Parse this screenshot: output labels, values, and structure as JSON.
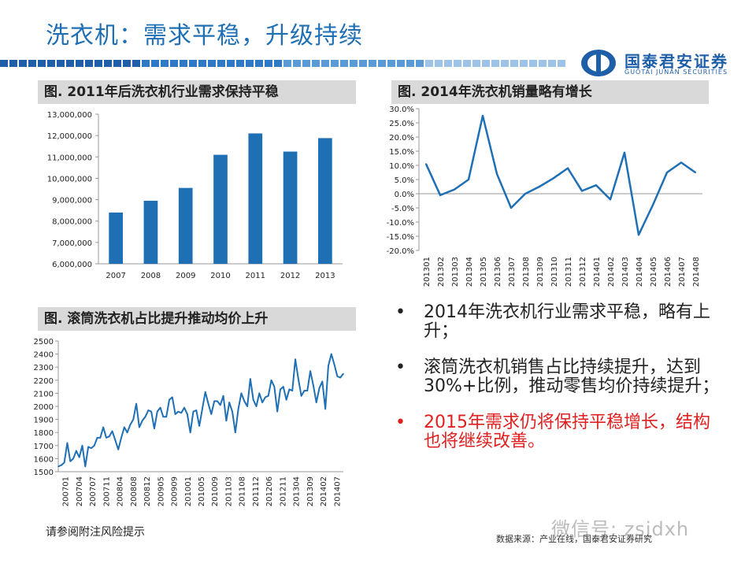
{
  "header": {
    "title": "洗衣机：需求平稳，升级持续",
    "logo_cn": "国泰君安证券",
    "logo_en": "GUOTAI  JUNAN  SECURITIES",
    "brand_color": "#1f6fb5"
  },
  "panels": {
    "bar_title": "图. 2011年后洗衣机行业需求保持平稳",
    "line1_title": "图. 2014年洗衣机销量略有增长",
    "line2_title": "图. 滚筒洗衣机占比提升推动均价上升"
  },
  "bullets": [
    {
      "text": "2014年洗衣机行业需求平稳，略有上升；",
      "color": "#222222"
    },
    {
      "text": "滚筒洗衣机销售占比持续提升，达到30%+比例，推动零售均价持续提升；",
      "color": "#222222"
    },
    {
      "text": "2015年需求仍将保持平稳增长，结构也将继续改善。",
      "color": "#e02020"
    }
  ],
  "footer": {
    "risk_note": "请参阅附注风险提示",
    "source": "数据来源：产业在线，国泰君安证券研究",
    "watermark": "微信号: zsjdxh"
  },
  "chart_data": [
    {
      "type": "bar",
      "title": "图. 2011年后洗衣机行业需求保持平稳",
      "categories": [
        "2007",
        "2008",
        "2009",
        "2010",
        "2011",
        "2012",
        "2013"
      ],
      "values": [
        8400000,
        8950000,
        9550000,
        11100000,
        12100000,
        11250000,
        11880000
      ],
      "ylim": [
        6000000,
        13000000
      ],
      "yticks": [
        6000000,
        7000000,
        8000000,
        9000000,
        10000000,
        11000000,
        12000000,
        13000000
      ],
      "ytick_labels": [
        "6,000,000",
        "7,000,000",
        "8,000,000",
        "9,000,000",
        "10,000,000",
        "11,000,000",
        "12,000,000",
        "13,000,000"
      ],
      "color": "#1f6fb5"
    },
    {
      "type": "line",
      "title": "图. 2014年洗衣机销量略有增长",
      "categories": [
        "201301",
        "201302",
        "201303",
        "201304",
        "201305",
        "201306",
        "201307",
        "201308",
        "201309",
        "201310",
        "201311",
        "201312",
        "201401",
        "201402",
        "201403",
        "201404",
        "201405",
        "201406",
        "201407",
        "201408"
      ],
      "values": [
        10.5,
        -0.5,
        1.5,
        5.0,
        27.5,
        7.0,
        -5.0,
        0.0,
        2.5,
        5.5,
        9.0,
        1.0,
        3.0,
        -2.0,
        14.5,
        -14.5,
        -4.0,
        7.5,
        11.0,
        7.5
      ],
      "ylim": [
        -20,
        30
      ],
      "yticks": [
        -20,
        -15,
        -10,
        -5,
        0,
        5,
        10,
        15,
        20,
        25,
        30
      ],
      "ytick_labels": [
        "-20.0%",
        "-15.0%",
        "-10.0%",
        "-5.0%",
        "0.0%",
        "5.0%",
        "10.0%",
        "15.0%",
        "20.0%",
        "25.0%",
        "30.0%"
      ],
      "color": "#1f6fb5"
    },
    {
      "type": "line",
      "title": "图. 滚筒洗衣机占比提升推动均价上升",
      "xtick_labels": [
        "200701",
        "200704",
        "200707",
        "200711",
        "200804",
        "200808",
        "200812",
        "200905",
        "200909",
        "201001",
        "201005",
        "201009",
        "201103",
        "201108",
        "201112",
        "201206",
        "201211",
        "201304",
        "201309",
        "201402",
        "201407"
      ],
      "values": [
        1540,
        1550,
        1570,
        1720,
        1580,
        1600,
        1660,
        1610,
        1700,
        1540,
        1690,
        1680,
        1700,
        1760,
        1760,
        1840,
        1760,
        1770,
        1810,
        1740,
        1670,
        1760,
        1840,
        1800,
        1860,
        1900,
        2020,
        1840,
        1890,
        1920,
        1970,
        1960,
        1830,
        1960,
        1990,
        1920,
        1920,
        2050,
        2070,
        1940,
        1960,
        1950,
        1990,
        1940,
        1800,
        1960,
        1970,
        1850,
        1980,
        2110,
        2020,
        1940,
        2040,
        2040,
        2010,
        2080,
        1890,
        2030,
        1960,
        1800,
        1980,
        2100,
        2040,
        2000,
        2210,
        2050,
        2000,
        2100,
        2030,
        2070,
        2080,
        2200,
        2150,
        1960,
        2130,
        2150,
        2050,
        2130,
        2120,
        2360,
        2210,
        2080,
        2120,
        2120,
        2270,
        2160,
        2030,
        2140,
        2190,
        1980,
        2310,
        2400,
        2320,
        2230,
        2220,
        2250
      ],
      "ylim": [
        1500,
        2500
      ],
      "yticks": [
        1500,
        1600,
        1700,
        1800,
        1900,
        2000,
        2100,
        2200,
        2300,
        2400,
        2500
      ],
      "ytick_labels": [
        "1500",
        "1600",
        "1700",
        "1800",
        "1900",
        "2000",
        "2100",
        "2200",
        "2300",
        "2400",
        "2500"
      ],
      "color": "#1f6fb5"
    }
  ]
}
